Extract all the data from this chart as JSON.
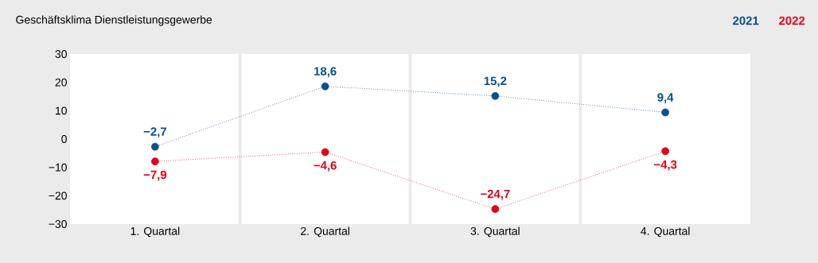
{
  "chart_data": {
    "type": "line",
    "title": "Geschäftsklima Dienstleistungsgewerbe",
    "categories": [
      "1. Quartal",
      "2. Quartal",
      "3. Quartal",
      "4. Quartal"
    ],
    "series": [
      {
        "name": "2021",
        "color": "#0b4f8c",
        "values": [
          -2.7,
          18.6,
          15.2,
          9.4
        ],
        "value_labels": [
          "−2,7",
          "18,6",
          "15,2",
          "9,4"
        ]
      },
      {
        "name": "2022",
        "color": "#e2001a",
        "values": [
          -7.9,
          -4.6,
          -24.7,
          -4.3
        ],
        "value_labels": [
          "−7,9",
          "−4,6",
          "−24,7",
          "−4,3"
        ]
      }
    ],
    "ylim": [
      -30,
      30
    ],
    "yticks": [
      {
        "value": -30,
        "label": "−30"
      },
      {
        "value": -20,
        "label": "−20"
      },
      {
        "value": -10,
        "label": "−10"
      },
      0,
      10,
      20,
      30
    ],
    "grid": false,
    "legend": "top right",
    "marker": "circle",
    "line_style": "dotted"
  }
}
